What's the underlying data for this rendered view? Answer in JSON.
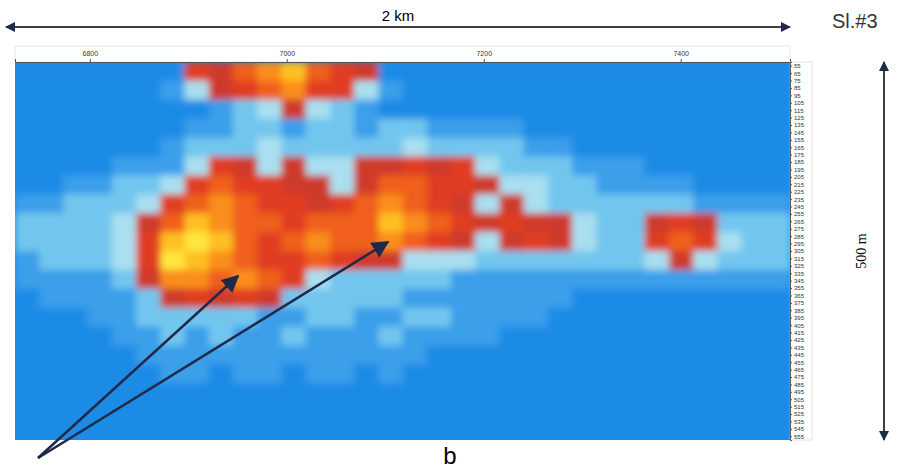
{
  "chart_data": {
    "type": "heatmap",
    "title": "Sl.#3",
    "annotations": [
      "2 km",
      "500 m",
      "b"
    ],
    "xlim": [
      6724,
      7511
    ],
    "xticks": [
      6800,
      7000,
      7200,
      7400
    ],
    "ylim": [
      50,
      560
    ],
    "yticks": [
      55,
      65,
      75,
      85,
      95,
      105,
      115,
      125,
      135,
      145,
      155,
      165,
      175,
      185,
      195,
      205,
      215,
      225,
      235,
      245,
      255,
      265,
      275,
      285,
      295,
      305,
      315,
      325,
      335,
      345,
      355,
      365,
      375,
      385,
      395,
      405,
      415,
      425,
      435,
      445,
      455,
      465,
      475,
      485,
      495,
      505,
      515,
      525,
      535,
      545,
      555
    ],
    "cells": [
      [
        0,
        0,
        0,
        0,
        0,
        0,
        0,
        5,
        4,
        6,
        7,
        8,
        6,
        5,
        4,
        0,
        0,
        0,
        0,
        0,
        0,
        0,
        0,
        0,
        0,
        0,
        0,
        0,
        0,
        0,
        0,
        0
      ],
      [
        0,
        0,
        0,
        0,
        0,
        0,
        1,
        3,
        4,
        5,
        6,
        7,
        5,
        5,
        3,
        1,
        0,
        0,
        0,
        0,
        0,
        0,
        0,
        0,
        0,
        0,
        0,
        0,
        0,
        0,
        0,
        0
      ],
      [
        0,
        0,
        0,
        0,
        0,
        0,
        0,
        0,
        1,
        2,
        3,
        4,
        3,
        2,
        1,
        0,
        0,
        0,
        0,
        0,
        0,
        0,
        0,
        0,
        0,
        0,
        0,
        0,
        0,
        0,
        0,
        0
      ],
      [
        0,
        0,
        0,
        0,
        0,
        0,
        0,
        1,
        1,
        2,
        2,
        1,
        2,
        2,
        1,
        2,
        2,
        1,
        1,
        1,
        1,
        0,
        0,
        0,
        0,
        0,
        0,
        0,
        0,
        0,
        0,
        0
      ],
      [
        0,
        0,
        0,
        0,
        0,
        0,
        1,
        2,
        2,
        2,
        3,
        2,
        2,
        2,
        2,
        2,
        3,
        2,
        2,
        2,
        2,
        1,
        1,
        0,
        0,
        0,
        0,
        0,
        0,
        0,
        0,
        0
      ],
      [
        0,
        0,
        0,
        0,
        1,
        1,
        1,
        3,
        5,
        4,
        3,
        4,
        3,
        3,
        4,
        4,
        5,
        4,
        5,
        3,
        2,
        2,
        2,
        1,
        1,
        1,
        0,
        0,
        0,
        0,
        0,
        0
      ],
      [
        0,
        0,
        1,
        1,
        2,
        2,
        3,
        5,
        6,
        5,
        5,
        4,
        4,
        3,
        4,
        6,
        6,
        5,
        5,
        4,
        3,
        3,
        2,
        2,
        1,
        1,
        1,
        1,
        0,
        0,
        0,
        0
      ],
      [
        1,
        1,
        2,
        2,
        2,
        3,
        5,
        6,
        7,
        6,
        5,
        5,
        4,
        5,
        6,
        7,
        6,
        5,
        4,
        3,
        4,
        3,
        2,
        2,
        2,
        2,
        2,
        2,
        1,
        1,
        1,
        1
      ],
      [
        2,
        2,
        2,
        2,
        3,
        4,
        6,
        8,
        7,
        6,
        6,
        5,
        6,
        6,
        6,
        8,
        7,
        6,
        5,
        4,
        5,
        4,
        4,
        3,
        2,
        2,
        4,
        5,
        4,
        2,
        2,
        2
      ],
      [
        2,
        2,
        2,
        2,
        3,
        5,
        8,
        9,
        8,
        6,
        5,
        6,
        7,
        6,
        6,
        7,
        6,
        5,
        4,
        3,
        4,
        5,
        4,
        3,
        2,
        2,
        5,
        6,
        5,
        3,
        2,
        2
      ],
      [
        1,
        2,
        2,
        2,
        3,
        5,
        9,
        8,
        7,
        6,
        5,
        5,
        6,
        5,
        4,
        4,
        3,
        3,
        3,
        2,
        2,
        2,
        2,
        2,
        2,
        2,
        3,
        4,
        3,
        2,
        2,
        2
      ],
      [
        1,
        1,
        1,
        1,
        2,
        4,
        7,
        7,
        6,
        7,
        6,
        5,
        3,
        2,
        2,
        2,
        2,
        2,
        1,
        1,
        1,
        1,
        1,
        1,
        1,
        1,
        1,
        1,
        1,
        1,
        1,
        1
      ],
      [
        0,
        1,
        1,
        1,
        1,
        2,
        4,
        5,
        4,
        5,
        4,
        2,
        2,
        2,
        2,
        2,
        1,
        1,
        1,
        1,
        1,
        1,
        1,
        0,
        0,
        0,
        0,
        0,
        0,
        0,
        0,
        0
      ],
      [
        0,
        0,
        0,
        1,
        1,
        2,
        2,
        2,
        2,
        2,
        1,
        1,
        2,
        2,
        1,
        1,
        2,
        2,
        1,
        1,
        1,
        1,
        0,
        0,
        0,
        0,
        0,
        0,
        0,
        0,
        0,
        0
      ],
      [
        0,
        0,
        0,
        0,
        1,
        1,
        2,
        1,
        2,
        1,
        1,
        2,
        1,
        1,
        1,
        2,
        1,
        1,
        1,
        1,
        0,
        0,
        0,
        0,
        0,
        0,
        0,
        0,
        0,
        0,
        0,
        0
      ],
      [
        0,
        0,
        0,
        0,
        0,
        1,
        1,
        1,
        1,
        1,
        1,
        1,
        1,
        1,
        1,
        1,
        1,
        0,
        0,
        0,
        0,
        0,
        0,
        0,
        0,
        0,
        0,
        0,
        0,
        0,
        0,
        0
      ],
      [
        0,
        0,
        0,
        0,
        0,
        0,
        1,
        1,
        0,
        1,
        1,
        0,
        1,
        1,
        0,
        1,
        0,
        0,
        0,
        0,
        0,
        0,
        0,
        0,
        0,
        0,
        0,
        0,
        0,
        0,
        0,
        0
      ],
      [
        0,
        0,
        0,
        0,
        0,
        0,
        0,
        0,
        0,
        0,
        0,
        0,
        0,
        0,
        0,
        0,
        0,
        0,
        0,
        0,
        0,
        0,
        0,
        0,
        0,
        0,
        0,
        0,
        0,
        0,
        0,
        0
      ],
      [
        0,
        0,
        0,
        0,
        0,
        0,
        0,
        0,
        0,
        0,
        0,
        0,
        0,
        0,
        0,
        0,
        0,
        0,
        0,
        0,
        0,
        0,
        0,
        0,
        0,
        0,
        0,
        0,
        0,
        0,
        0,
        0
      ],
      [
        0,
        0,
        0,
        0,
        0,
        0,
        0,
        0,
        0,
        0,
        0,
        0,
        0,
        0,
        0,
        0,
        0,
        0,
        0,
        0,
        0,
        0,
        0,
        0,
        0,
        0,
        0,
        0,
        0,
        0,
        0,
        0
      ]
    ]
  }
}
